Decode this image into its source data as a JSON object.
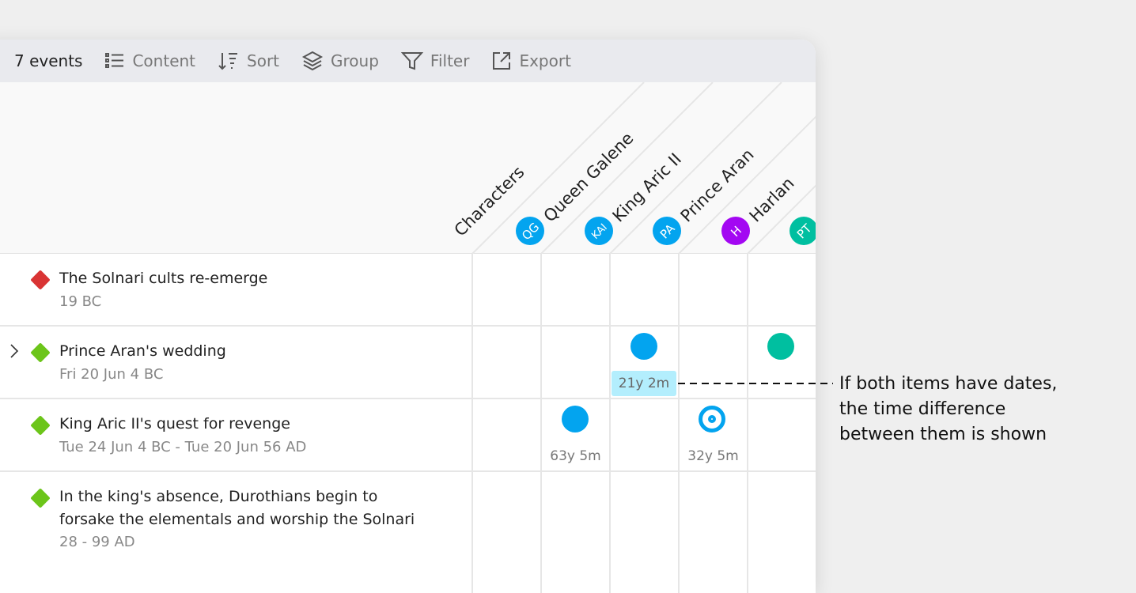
{
  "toolbar": {
    "count": "7 events",
    "content": "Content",
    "sort": "Sort",
    "group": "Group",
    "filter": "Filter",
    "export": "Export"
  },
  "header": {
    "characters_label": "Characters",
    "columns": [
      {
        "name": "Queen Galene",
        "initials": "QG",
        "color": "#03a4ef"
      },
      {
        "name": "King Aric II",
        "initials": "KAI",
        "color": "#03a4ef"
      },
      {
        "name": "Prince Aran",
        "initials": "PA",
        "color": "#03a4ef"
      },
      {
        "name": "Harlan",
        "initials": "H",
        "color": "#a307f2"
      },
      {
        "name": "",
        "initials": "PT",
        "color": "#00bfa0"
      }
    ]
  },
  "events": [
    {
      "title": "The Solnari cults re-emerge",
      "date": "19 BC",
      "color": "#d93434"
    },
    {
      "title": "Prince Aran's wedding",
      "date": "Fri 20 Jun 4 BC",
      "color": "#6cc51a"
    },
    {
      "title": "King Aric II's quest for revenge",
      "date": "Tue 24 Jun 4 BC - Tue 20 Jun 56 AD",
      "color": "#6cc51a"
    },
    {
      "title_line1": "In the king's absence, Durothians begin to",
      "title_line2": "forsake the elementals and worship the Solnari",
      "date": "28 - 99 AD",
      "color": "#6cc51a"
    }
  ],
  "cells": {
    "wedding_diff": "21y 2m",
    "quest_king_diff": "63y 5m",
    "quest_aran_diff": "32y 5m"
  },
  "annotation": {
    "line1": "If both items have dates,",
    "line2": "the time difference",
    "line3": "between them is shown"
  }
}
